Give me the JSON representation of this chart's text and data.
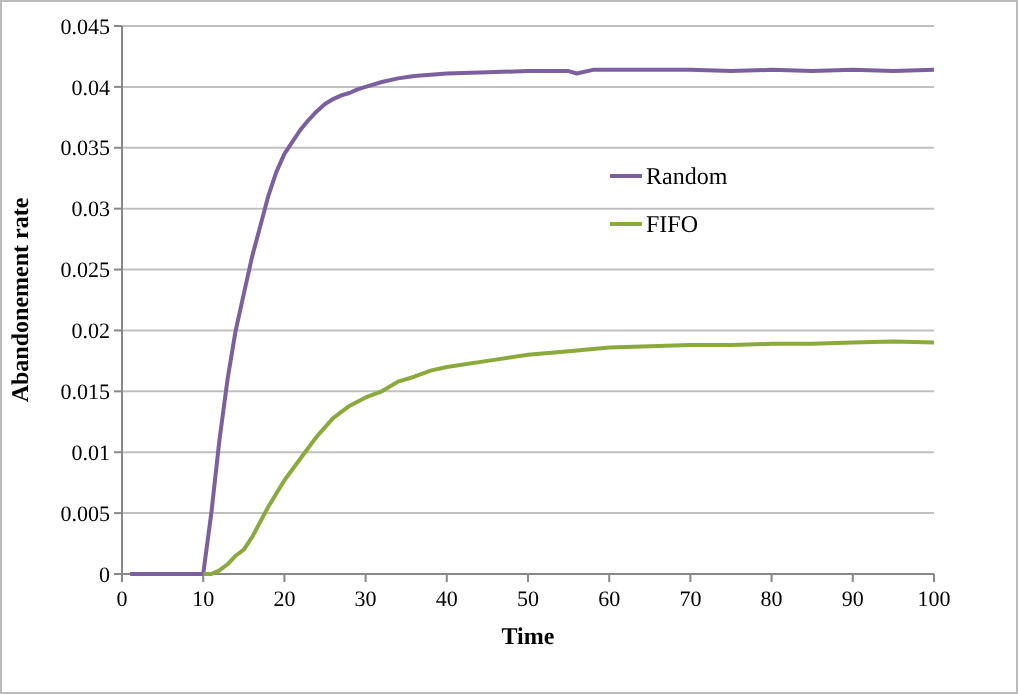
{
  "chart_data": {
    "type": "line",
    "xlabel": "Time",
    "ylabel": "Abandonement rate",
    "xlim": [
      0,
      100
    ],
    "xticks": [
      0,
      10,
      20,
      30,
      40,
      50,
      60,
      70,
      80,
      90,
      100
    ],
    "ylim": [
      0,
      0.045
    ],
    "yticks": [
      0,
      0.005,
      0.01,
      0.015,
      0.02,
      0.025,
      0.03,
      0.035,
      0.04,
      0.045
    ],
    "grid": "y",
    "legend": "right",
    "marker": "none",
    "line_style": "solid",
    "series": [
      {
        "name": "Random",
        "color": "#7b5fa0",
        "x": [
          1,
          10,
          11,
          12,
          13,
          14,
          15,
          16,
          17,
          18,
          19,
          20,
          21,
          22,
          23,
          24,
          25,
          26,
          27,
          28,
          29,
          30,
          32,
          34,
          36,
          38,
          40,
          45,
          50,
          52,
          55,
          56,
          58,
          60,
          70,
          75,
          80,
          85,
          90,
          95,
          100
        ],
        "values": [
          0,
          0,
          0.005,
          0.011,
          0.016,
          0.02,
          0.023,
          0.026,
          0.0285,
          0.031,
          0.033,
          0.0345,
          0.0355,
          0.0365,
          0.0373,
          0.038,
          0.0386,
          0.039,
          0.0393,
          0.0395,
          0.0398,
          0.04,
          0.0404,
          0.0407,
          0.0409,
          0.041,
          0.0411,
          0.0412,
          0.0413,
          0.0413,
          0.0413,
          0.0411,
          0.0414,
          0.0414,
          0.0414,
          0.0413,
          0.0414,
          0.0413,
          0.0414,
          0.0413,
          0.0414
        ]
      },
      {
        "name": "FIFO",
        "color": "#8aaa3c",
        "x": [
          10,
          11,
          12,
          13,
          14,
          15,
          16,
          18,
          20,
          22,
          24,
          26,
          28,
          30,
          32,
          34,
          36,
          38,
          40,
          45,
          50,
          55,
          60,
          65,
          70,
          75,
          80,
          85,
          90,
          95,
          100
        ],
        "values": [
          0,
          0,
          0.0003,
          0.0008,
          0.0015,
          0.002,
          0.003,
          0.0055,
          0.0077,
          0.0095,
          0.0113,
          0.0128,
          0.0138,
          0.0145,
          0.015,
          0.0158,
          0.0162,
          0.0167,
          0.017,
          0.0175,
          0.018,
          0.0183,
          0.0186,
          0.0187,
          0.0188,
          0.0188,
          0.0189,
          0.0189,
          0.019,
          0.0191,
          0.019
        ]
      }
    ]
  }
}
